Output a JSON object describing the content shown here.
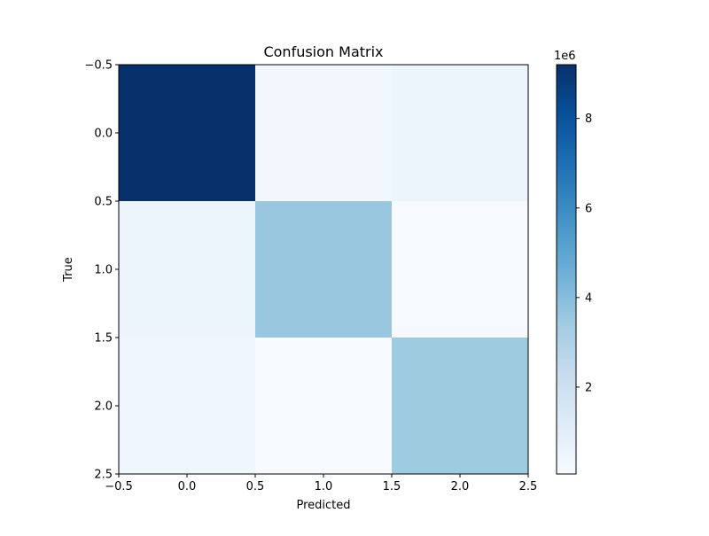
{
  "chart_data": {
    "type": "heatmap",
    "title": "Confusion Matrix",
    "xlabel": "Predicted",
    "ylabel": "True",
    "x_ticks": [
      "−0.5",
      "0.0",
      "0.5",
      "1.0",
      "1.5",
      "2.0",
      "2.5"
    ],
    "y_ticks": [
      "−0.5",
      "0.0",
      "0.5",
      "1.0",
      "1.5",
      "2.0",
      "2.5"
    ],
    "xlim": [
      -0.5,
      2.5
    ],
    "ylim": [
      2.5,
      -0.5
    ],
    "rows": [
      0,
      1,
      2
    ],
    "cols": [
      0,
      1,
      2
    ],
    "values": [
      [
        9200000,
        320000,
        550000
      ],
      [
        520000,
        3600000,
        120000
      ],
      [
        400000,
        60000,
        3450000
      ]
    ],
    "colormap": "Blues",
    "colorbar": {
      "min": 60000,
      "max": 9200000,
      "ticks": [
        2,
        4,
        6,
        8
      ],
      "tick_labels": [
        "2",
        "4",
        "6",
        "8"
      ],
      "multiplier_label": "1e6"
    },
    "grid": false
  }
}
